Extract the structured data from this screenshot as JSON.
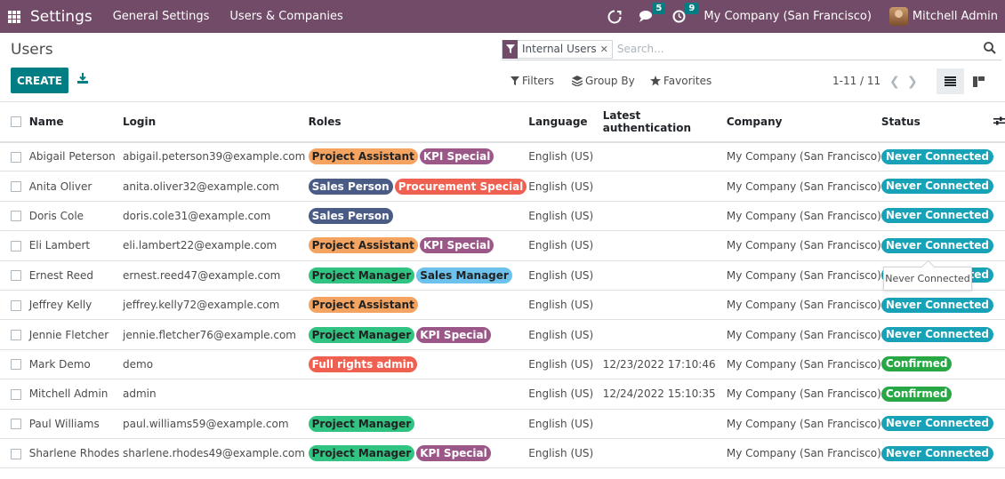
{
  "navbar": {
    "app_title": "Settings",
    "menu": [
      "General Settings",
      "Users & Companies"
    ],
    "messages_count": "5",
    "activities_count": "9",
    "company": "My Company (San Francisco)",
    "user": "Mitchell Admin"
  },
  "control_panel": {
    "title": "Users",
    "create_label": "CREATE",
    "search": {
      "facet": "Internal Users",
      "placeholder": "Search..."
    },
    "filters_label": "Filters",
    "group_by_label": "Group By",
    "favorites_label": "Favorites",
    "pager": "1-11 / 11"
  },
  "table": {
    "columns": [
      "Name",
      "Login",
      "Roles",
      "Language",
      "Latest authentication",
      "Company",
      "Status"
    ],
    "rows": [
      {
        "name": "Abigail Peterson",
        "login": "abigail.peterson39@example.com",
        "roles": [
          {
            "label": "Project Assistant",
            "color": "#f4a460"
          },
          {
            "label": "KPI Special",
            "color": "#9c5789"
          }
        ],
        "language": "English (US)",
        "auth": "",
        "company": "My Company (San Francisco)",
        "status": "Never Connected",
        "status_color": "#17a2b8"
      },
      {
        "name": "Anita Oliver",
        "login": "anita.oliver32@example.com",
        "roles": [
          {
            "label": "Sales Person",
            "color": "#4a5b85"
          },
          {
            "label": "Procurement Special",
            "color": "#f06050"
          }
        ],
        "language": "English (US)",
        "auth": "",
        "company": "My Company (San Francisco)",
        "status": "Never Connected",
        "status_color": "#17a2b8"
      },
      {
        "name": "Doris Cole",
        "login": "doris.cole31@example.com",
        "roles": [
          {
            "label": "Sales Person",
            "color": "#4a5b85"
          }
        ],
        "language": "English (US)",
        "auth": "",
        "company": "My Company (San Francisco)",
        "status": "Never Connected",
        "status_color": "#17a2b8"
      },
      {
        "name": "Eli Lambert",
        "login": "eli.lambert22@example.com",
        "roles": [
          {
            "label": "Project Assistant",
            "color": "#f4a460"
          },
          {
            "label": "KPI Special",
            "color": "#9c5789"
          }
        ],
        "language": "English (US)",
        "auth": "",
        "company": "My Company (San Francisco)",
        "status": "Never Connected",
        "status_color": "#17a2b8"
      },
      {
        "name": "Ernest Reed",
        "login": "ernest.reed47@example.com",
        "roles": [
          {
            "label": "Project Manager",
            "color": "#30c381"
          },
          {
            "label": "Sales Manager",
            "color": "#6cc1ed"
          }
        ],
        "language": "English (US)",
        "auth": "",
        "company": "My Company (San Francisco)",
        "status": "Never Connected",
        "status_color": "#17a2b8"
      },
      {
        "name": "Jeffrey Kelly",
        "login": "jeffrey.kelly72@example.com",
        "roles": [
          {
            "label": "Project Assistant",
            "color": "#f4a460"
          }
        ],
        "language": "English (US)",
        "auth": "",
        "company": "My Company (San Francisco)",
        "status": "Never Connected",
        "status_color": "#17a2b8"
      },
      {
        "name": "Jennie Fletcher",
        "login": "jennie.fletcher76@example.com",
        "roles": [
          {
            "label": "Project Manager",
            "color": "#30c381"
          },
          {
            "label": "KPI Special",
            "color": "#9c5789"
          }
        ],
        "language": "English (US)",
        "auth": "",
        "company": "My Company (San Francisco)",
        "status": "Never Connected",
        "status_color": "#17a2b8"
      },
      {
        "name": "Mark Demo",
        "login": "demo",
        "roles": [
          {
            "label": "Full rights admin",
            "color": "#f06050"
          }
        ],
        "language": "English (US)",
        "auth": "12/23/2022 17:10:46",
        "company": "My Company (San Francisco)",
        "status": "Confirmed",
        "status_color": "#28a745"
      },
      {
        "name": "Mitchell Admin",
        "login": "admin",
        "roles": [],
        "language": "English (US)",
        "auth": "12/24/2022 15:10:35",
        "company": "My Company (San Francisco)",
        "status": "Confirmed",
        "status_color": "#28a745"
      },
      {
        "name": "Paul Williams",
        "login": "paul.williams59@example.com",
        "roles": [
          {
            "label": "Project Manager",
            "color": "#30c381"
          }
        ],
        "language": "English (US)",
        "auth": "",
        "company": "My Company (San Francisco)",
        "status": "Never Connected",
        "status_color": "#17a2b8"
      },
      {
        "name": "Sharlene Rhodes",
        "login": "sharlene.rhodes49@example.com",
        "roles": [
          {
            "label": "Project Manager",
            "color": "#30c381"
          },
          {
            "label": "KPI Special",
            "color": "#9c5789"
          }
        ],
        "language": "English (US)",
        "auth": "",
        "company": "My Company (San Francisco)",
        "status": "Never Connected",
        "status_color": "#17a2b8"
      }
    ]
  },
  "tooltip": "Never Connected",
  "icons": [
    "apps-menu-icon",
    "debug-icon",
    "chat-icon",
    "clock-icon",
    "download-icon",
    "filter-icon",
    "search-icon",
    "layers-icon",
    "star-icon",
    "list-view-icon",
    "kanban-view-icon",
    "column-settings-icon"
  ]
}
